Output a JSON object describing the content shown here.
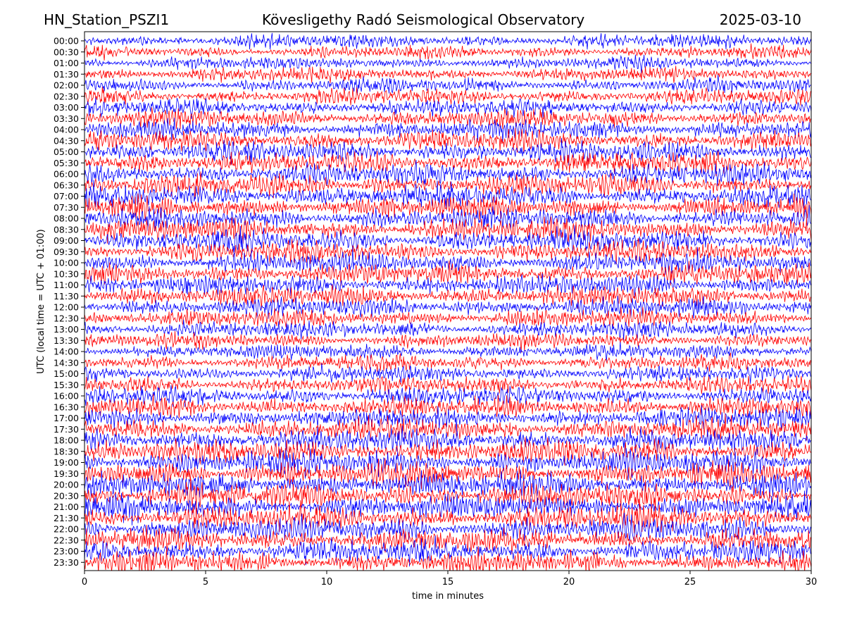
{
  "header": {
    "station": "HN_Station_PSZI1",
    "observatory": "Kövesligethy Radó Seismological Observatory",
    "date": "2025-03-10"
  },
  "chart_data": {
    "type": "line",
    "title": "Kövesligethy Radó Seismological Observatory",
    "xlabel": "time in minutes",
    "ylabel": "UTC (local time = UTC + 01:00)",
    "xlim": [
      0,
      30
    ],
    "xticks": [
      0,
      5,
      10,
      15,
      20,
      25,
      30
    ],
    "yticks": [
      "00:00",
      "00:30",
      "01:00",
      "01:30",
      "02:00",
      "02:30",
      "03:00",
      "03:30",
      "04:00",
      "04:30",
      "05:00",
      "05:30",
      "06:00",
      "06:30",
      "07:00",
      "07:30",
      "08:00",
      "08:30",
      "09:00",
      "09:30",
      "10:00",
      "10:30",
      "11:00",
      "11:30",
      "12:00",
      "12:30",
      "13:00",
      "13:30",
      "14:00",
      "14:30",
      "15:00",
      "15:30",
      "16:00",
      "16:30",
      "17:00",
      "17:30",
      "18:00",
      "18:30",
      "19:00",
      "19:30",
      "20:00",
      "20:30",
      "21:00",
      "21:30",
      "22:00",
      "22:30",
      "23:00",
      "23:30"
    ],
    "grid": false,
    "series_colors": [
      "#0000ff",
      "#ff0000"
    ],
    "trace_amplitude": [
      1.0,
      0.9,
      0.95,
      1.0,
      1.05,
      1.15,
      1.2,
      1.35,
      1.4,
      1.45,
      1.5,
      1.55,
      1.6,
      1.6,
      1.65,
      1.6,
      1.55,
      1.6,
      1.6,
      1.55,
      1.5,
      1.5,
      1.45,
      1.45,
      1.4,
      1.3,
      1.2,
      1.1,
      1.05,
      1.1,
      1.15,
      1.25,
      1.35,
      1.45,
      1.5,
      1.6,
      1.7,
      1.75,
      1.8,
      1.85,
      1.85,
      1.85,
      1.8,
      1.8,
      1.75,
      1.7,
      1.65,
      1.6
    ]
  }
}
